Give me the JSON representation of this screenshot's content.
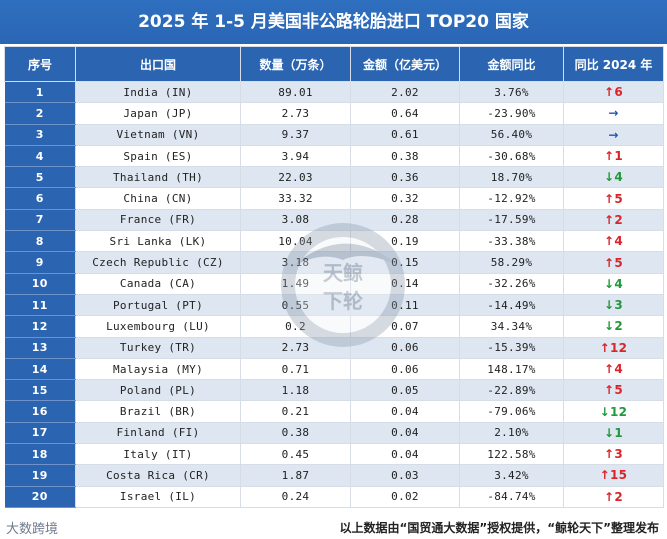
{
  "title": "2025 年 1-5 月美国非公路轮胎进口 TOP20 国家",
  "headers": [
    "序号",
    "出口国",
    "数量（万条）",
    "金额（亿美元）",
    "金额同比",
    "同比 2024 年"
  ],
  "rows": [
    {
      "rank": "1",
      "country": "India (IN)",
      "qty": "89.01",
      "amount": "2.02",
      "yoy": "3.76%",
      "trend": "up",
      "change": "6"
    },
    {
      "rank": "2",
      "country": "Japan (JP)",
      "qty": "2.73",
      "amount": "0.64",
      "yoy": "-23.90%",
      "trend": "flat",
      "change": ""
    },
    {
      "rank": "3",
      "country": "Vietnam (VN)",
      "qty": "9.37",
      "amount": "0.61",
      "yoy": "56.40%",
      "trend": "flat",
      "change": ""
    },
    {
      "rank": "4",
      "country": "Spain (ES)",
      "qty": "3.94",
      "amount": "0.38",
      "yoy": "-30.68%",
      "trend": "up",
      "change": "1"
    },
    {
      "rank": "5",
      "country": "Thailand (TH)",
      "qty": "22.03",
      "amount": "0.36",
      "yoy": "18.70%",
      "trend": "down",
      "change": "4"
    },
    {
      "rank": "6",
      "country": "China (CN)",
      "qty": "33.32",
      "amount": "0.32",
      "yoy": "-12.92%",
      "trend": "up",
      "change": "5"
    },
    {
      "rank": "7",
      "country": "France (FR)",
      "qty": "3.08",
      "amount": "0.28",
      "yoy": "-17.59%",
      "trend": "up",
      "change": "2"
    },
    {
      "rank": "8",
      "country": "Sri Lanka (LK)",
      "qty": "10.04",
      "amount": "0.19",
      "yoy": "-33.38%",
      "trend": "up",
      "change": "4"
    },
    {
      "rank": "9",
      "country": "Czech Republic (CZ)",
      "qty": "3.18",
      "amount": "0.15",
      "yoy": "58.29%",
      "trend": "up",
      "change": "5"
    },
    {
      "rank": "10",
      "country": "Canada (CA)",
      "qty": "1.49",
      "amount": "0.14",
      "yoy": "-32.26%",
      "trend": "down",
      "change": "4"
    },
    {
      "rank": "11",
      "country": "Portugal (PT)",
      "qty": "0.55",
      "amount": "0.11",
      "yoy": "-14.49%",
      "trend": "down",
      "change": "3"
    },
    {
      "rank": "12",
      "country": "Luxembourg (LU)",
      "qty": "0.2",
      "amount": "0.07",
      "yoy": "34.34%",
      "trend": "down",
      "change": "2"
    },
    {
      "rank": "13",
      "country": "Turkey (TR)",
      "qty": "2.73",
      "amount": "0.06",
      "yoy": "-15.39%",
      "trend": "up",
      "change": "12"
    },
    {
      "rank": "14",
      "country": "Malaysia (MY)",
      "qty": "0.71",
      "amount": "0.06",
      "yoy": "148.17%",
      "trend": "up",
      "change": "4"
    },
    {
      "rank": "15",
      "country": "Poland (PL)",
      "qty": "1.18",
      "amount": "0.05",
      "yoy": "-22.89%",
      "trend": "up",
      "change": "5"
    },
    {
      "rank": "16",
      "country": "Brazil (BR)",
      "qty": "0.21",
      "amount": "0.04",
      "yoy": "-79.06%",
      "trend": "down",
      "change": "12"
    },
    {
      "rank": "17",
      "country": "Finland (FI)",
      "qty": "0.38",
      "amount": "0.04",
      "yoy": "2.10%",
      "trend": "down",
      "change": "1"
    },
    {
      "rank": "18",
      "country": "Italy (IT)",
      "qty": "0.45",
      "amount": "0.04",
      "yoy": "122.58%",
      "trend": "up",
      "change": "3"
    },
    {
      "rank": "19",
      "country": "Costa Rica (CR)",
      "qty": "1.87",
      "amount": "0.03",
      "yoy": "3.42%",
      "trend": "up",
      "change": "15"
    },
    {
      "rank": "20",
      "country": "Israel (IL)",
      "qty": "0.24",
      "amount": "0.02",
      "yoy": "-84.74%",
      "trend": "up",
      "change": "2"
    }
  ],
  "footer": {
    "logo": "大数跨境",
    "note": "以上数据由“国贸通大数据”授权提供，“鲸轮天下”整理发布"
  },
  "watermark": "天鲸下轮",
  "colors": {
    "header": "#2b65b2",
    "up": "#d9252a",
    "down": "#1f9a3a",
    "flat": "#1f56b5",
    "stripe": "#dde6f1"
  }
}
